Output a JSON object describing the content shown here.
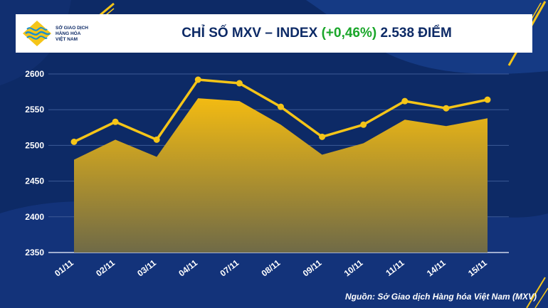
{
  "header": {
    "logo_line1": "SỞ GIAO DỊCH",
    "logo_line2": "HÀNG HÓA",
    "logo_line3": "VIỆT NAM",
    "title_prefix": "CHỈ SỐ MXV – INDEX",
    "title_change": "(+0,46%)",
    "title_suffix": "2.538 ĐIỂM"
  },
  "source": "Nguồn: Sở Giao dịch Hàng hóa Việt Nam (MXV)",
  "colors": {
    "background": "#0d2a66",
    "line": "#f5c518",
    "area_top": "#f3bb12",
    "area_bottom": "#6f6a47",
    "positive": "#1aa62a"
  },
  "chart_data": {
    "type": "line",
    "categories": [
      "01/11",
      "02/11",
      "03/11",
      "04/11",
      "07/11",
      "08/11",
      "09/11",
      "10/11",
      "11/11",
      "14/11",
      "15/11"
    ],
    "series": [
      {
        "type": "area",
        "values": [
          2480,
          2508,
          2484,
          2566,
          2562,
          2529,
          2487,
          2503,
          2536,
          2527,
          2538
        ]
      },
      {
        "type": "line",
        "values": [
          2505,
          2533,
          2508,
          2592,
          2587,
          2554,
          2512,
          2529,
          2562,
          2552,
          2564
        ]
      }
    ],
    "ylim": [
      2350,
      2600
    ],
    "yticks": [
      2350,
      2400,
      2450,
      2500,
      2550,
      2600
    ],
    "grid": true
  }
}
